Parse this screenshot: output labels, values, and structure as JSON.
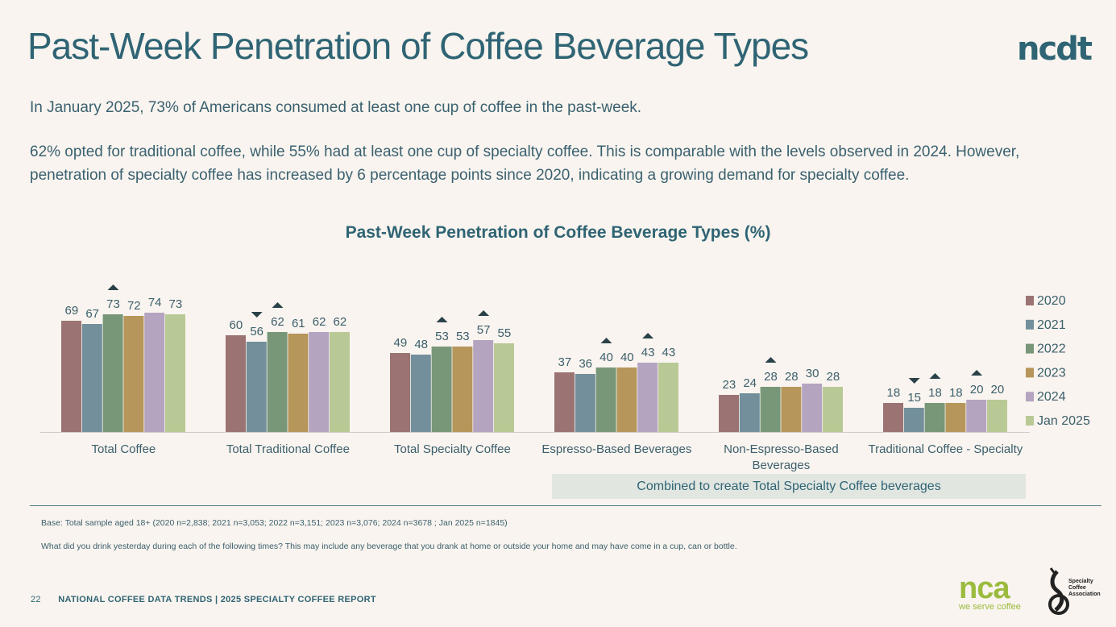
{
  "header": {
    "title": "Past-Week Penetration of Coffee Beverage Types",
    "logo": "ncdt"
  },
  "intro": {
    "line1": "In January 2025, 73% of Americans consumed at least one cup of coffee in the past-week.",
    "line2": "62% opted for traditional coffee, while 55% had at least one cup of specialty coffee. This is comparable with the levels observed in 2024. However, penetration of specialty coffee has increased by 6 percentage points since 2020, indicating a growing demand for specialty coffee."
  },
  "chart_data": {
    "type": "bar",
    "title": "Past-Week Penetration of Coffee Beverage Types (%)",
    "categories": [
      "Total Coffee",
      "Total Traditional Coffee",
      "Total Specialty Coffee",
      "Espresso-Based Beverages",
      "Non-Espresso-Based Beverages",
      "Traditional Coffee - Specialty"
    ],
    "series": [
      {
        "name": "2020",
        "color": "#9b7373",
        "values": [
          69,
          60,
          49,
          37,
          23,
          18
        ]
      },
      {
        "name": "2021",
        "color": "#728f9b",
        "values": [
          67,
          56,
          48,
          36,
          24,
          15
        ]
      },
      {
        "name": "2022",
        "color": "#789779",
        "values": [
          73,
          62,
          53,
          40,
          28,
          18
        ]
      },
      {
        "name": "2023",
        "color": "#b6965a",
        "values": [
          72,
          61,
          53,
          40,
          28,
          18
        ]
      },
      {
        "name": "2024",
        "color": "#b4a4c0",
        "values": [
          74,
          62,
          57,
          43,
          30,
          20
        ]
      },
      {
        "name": "Jan 2025",
        "color": "#b9c995",
        "values": [
          73,
          62,
          55,
          43,
          28,
          20
        ]
      }
    ],
    "significance_markers": [
      {
        "category": "Total Coffee",
        "series": "2022",
        "direction": "up"
      },
      {
        "category": "Total Traditional Coffee",
        "series": "2021",
        "direction": "down"
      },
      {
        "category": "Total Traditional Coffee",
        "series": "2022",
        "direction": "up"
      },
      {
        "category": "Total Specialty Coffee",
        "series": "2022",
        "direction": "up"
      },
      {
        "category": "Total Specialty Coffee",
        "series": "2024",
        "direction": "up"
      },
      {
        "category": "Espresso-Based Beverages",
        "series": "2022",
        "direction": "up"
      },
      {
        "category": "Espresso-Based Beverages",
        "series": "2024",
        "direction": "up"
      },
      {
        "category": "Non-Espresso-Based Beverages",
        "series": "2022",
        "direction": "up"
      },
      {
        "category": "Traditional Coffee - Specialty",
        "series": "2021",
        "direction": "down"
      },
      {
        "category": "Traditional Coffee - Specialty",
        "series": "2022",
        "direction": "up"
      },
      {
        "category": "Traditional Coffee - Specialty",
        "series": "2024",
        "direction": "up"
      }
    ],
    "legend_position": "right",
    "grid": false,
    "ylim": [
      0,
      100
    ]
  },
  "combined_note": "Combined to create Total Specialty Coffee beverages",
  "notes": {
    "base": "Base: Total sample aged 18+ (2020 n=2,838; 2021 n=3,053; 2022 n=3,151; 2023 n=3,076; 2024 n=3678 ; Jan 2025 n=1845)",
    "question": "What did you drink yesterday during each of the following times? This may include any beverage that you drank at home or outside your home and may have come in a cup, can or bottle."
  },
  "footer": {
    "page": "22",
    "report": "NATIONAL COFFEE DATA TRENDS  |  2025 SPECIALTY COFFEE REPORT"
  },
  "logos": {
    "nca": "nca",
    "nca_tagline": "we serve coffee",
    "sca_line1": "Specialty",
    "sca_line2": "Coffee",
    "sca_line3": "Association"
  }
}
